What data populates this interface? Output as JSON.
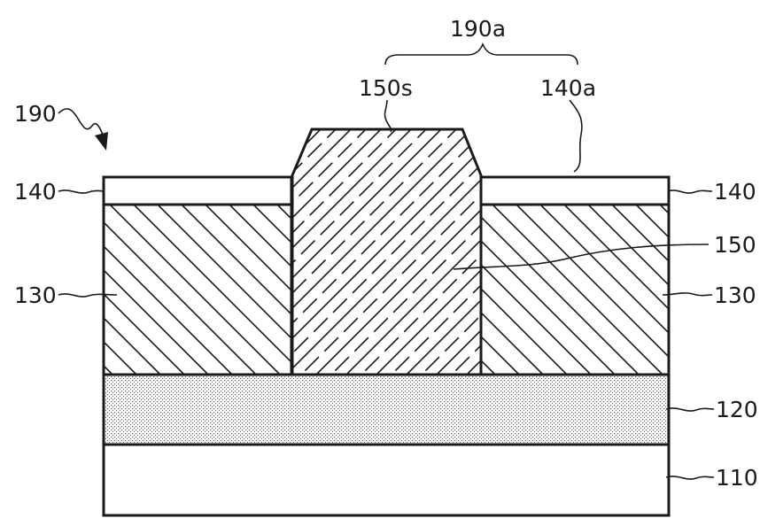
{
  "labels": {
    "l190": "190",
    "l190a": "190a",
    "l150s": "150s",
    "l140a": "140a",
    "l140_left": "140",
    "l140_right": "140",
    "l150": "150",
    "l130_left": "130",
    "l130_right": "130",
    "l120": "120",
    "l110": "110"
  },
  "colors": {
    "ink": "#1a1a1a",
    "background": "#ffffff"
  }
}
